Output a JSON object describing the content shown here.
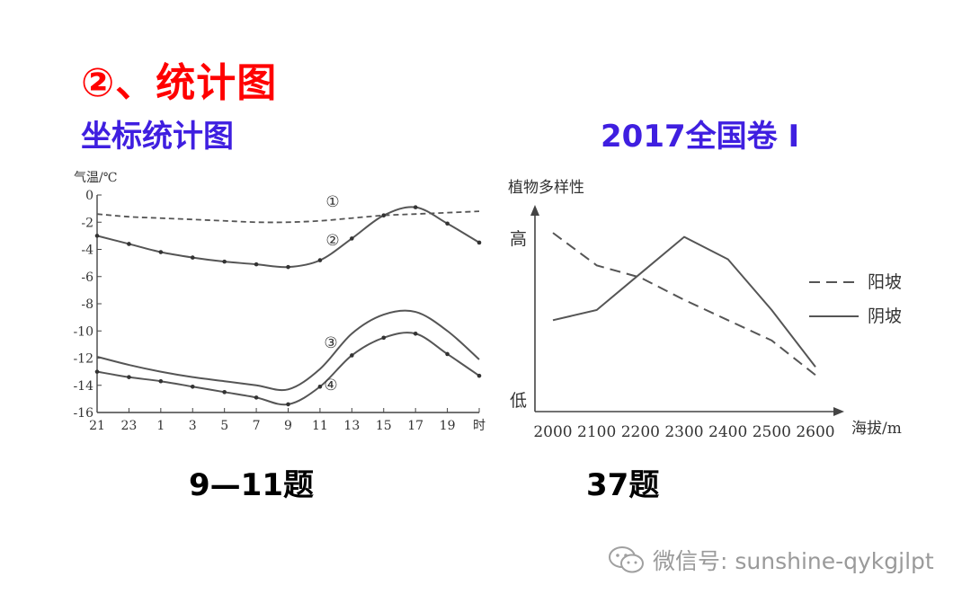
{
  "heading": "②、统计图",
  "subheading": "坐标统计图",
  "right_heading": "2017全国卷 I",
  "caption_left": "9—11题",
  "caption_right": "37题",
  "watermark": "微信号: sunshine-qykgjlpt",
  "colors": {
    "heading": "#ff0000",
    "subheading": "#3f1fe0",
    "line": "#555555",
    "watermark": "#9a9a9a"
  },
  "chart_data": [
    {
      "type": "line",
      "ylabel": "气温/℃",
      "xlabel_unit": "时",
      "categories": [
        "21",
        "23",
        "1",
        "3",
        "5",
        "7",
        "9",
        "11",
        "13",
        "15",
        "17",
        "19",
        "21"
      ],
      "tick_labels": [
        "21",
        "23",
        "1",
        "3",
        "5",
        "7",
        "9",
        "11",
        "13",
        "15",
        "17",
        "19",
        "时"
      ],
      "yticks": [
        "0",
        "-2",
        "-4",
        "-6",
        "-8",
        "-10",
        "-12",
        "-14",
        "-16"
      ],
      "ylim": [
        -16,
        0
      ],
      "series": [
        {
          "name": "①",
          "style": "dashed",
          "values": [
            -1.4,
            -1.6,
            -1.7,
            -1.8,
            -1.9,
            -2.0,
            -2.0,
            -1.9,
            -1.7,
            -1.5,
            -1.4,
            -1.3,
            -1.2
          ]
        },
        {
          "name": "②",
          "style": "solid-dots",
          "values": [
            -3.0,
            -3.6,
            -4.2,
            -4.6,
            -4.9,
            -5.1,
            -5.3,
            -4.8,
            -3.2,
            -1.5,
            -0.9,
            -2.1,
            -3.5
          ]
        },
        {
          "name": "③",
          "style": "solid",
          "values": [
            -11.9,
            -12.5,
            -13.0,
            -13.4,
            -13.7,
            -14.0,
            -14.3,
            -12.8,
            -10.2,
            -8.8,
            -8.6,
            -10.0,
            -12.1
          ]
        },
        {
          "name": "④",
          "style": "solid-dots",
          "values": [
            -13.0,
            -13.4,
            -13.7,
            -14.1,
            -14.5,
            -14.9,
            -15.4,
            -14.1,
            -11.8,
            -10.5,
            -10.2,
            -11.7,
            -13.3
          ]
        }
      ]
    },
    {
      "type": "line",
      "ylabel": "植物多样性",
      "xlabel": "海拔/m",
      "y_high": "高",
      "y_low": "低",
      "categories": [
        "2000",
        "2100",
        "2200",
        "2300",
        "2400",
        "2500",
        "2600"
      ],
      "ylim": [
        0,
        1
      ],
      "series": [
        {
          "name": "阳坡",
          "style": "dashed",
          "values": [
            0.88,
            0.72,
            0.66,
            0.55,
            0.45,
            0.35,
            0.18
          ]
        },
        {
          "name": "阴坡",
          "style": "solid",
          "values": [
            0.45,
            0.5,
            0.68,
            0.86,
            0.75,
            0.5,
            0.22
          ]
        }
      ]
    }
  ]
}
